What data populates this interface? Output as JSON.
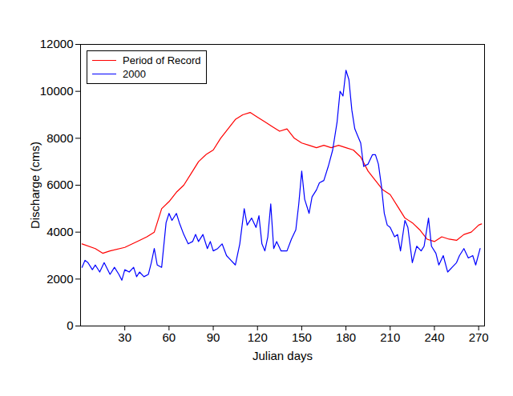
{
  "chart_data": {
    "type": "line",
    "xlabel": "Julian days",
    "ylabel": "Discharge (cms)",
    "xlim": [
      0,
      274
    ],
    "xticks": [
      30,
      60,
      90,
      120,
      150,
      180,
      210,
      240,
      270
    ],
    "ylim": [
      0,
      12000
    ],
    "yticks": [
      0,
      2000,
      4000,
      6000,
      8000,
      10000,
      12000
    ],
    "grid": false,
    "legend": "top-left",
    "series": [
      {
        "name": "Period of Record",
        "color": "#ff0000",
        "x": [
          1,
          10,
          15,
          20,
          30,
          40,
          45,
          50,
          55,
          60,
          65,
          70,
          75,
          80,
          85,
          90,
          95,
          100,
          105,
          110,
          115,
          120,
          125,
          130,
          135,
          140,
          145,
          150,
          155,
          160,
          165,
          170,
          175,
          180,
          185,
          190,
          195,
          200,
          205,
          210,
          215,
          220,
          225,
          230,
          235,
          240,
          245,
          250,
          255,
          260,
          265,
          270,
          272
        ],
        "values": [
          3500,
          3300,
          3100,
          3200,
          3350,
          3650,
          3800,
          4000,
          5000,
          5300,
          5700,
          6000,
          6500,
          7000,
          7300,
          7500,
          8000,
          8400,
          8800,
          9000,
          9100,
          8900,
          8700,
          8500,
          8300,
          8400,
          8000,
          7800,
          7700,
          7600,
          7700,
          7600,
          7700,
          7600,
          7500,
          7200,
          6600,
          6200,
          5800,
          5600,
          5100,
          4600,
          4400,
          4100,
          3700,
          3600,
          3800,
          3700,
          3650,
          3900,
          4000,
          4300,
          4350
        ]
      },
      {
        "name": "2000",
        "color": "#0000ff",
        "x": [
          1,
          3,
          5,
          8,
          10,
          13,
          16,
          20,
          23,
          26,
          28,
          30,
          33,
          36,
          38,
          40,
          43,
          46,
          48,
          50,
          52,
          55,
          58,
          60,
          62,
          65,
          67,
          70,
          73,
          76,
          78,
          80,
          83,
          86,
          88,
          90,
          93,
          96,
          99,
          102,
          105,
          108,
          111,
          113,
          116,
          119,
          121,
          123,
          125,
          127,
          129,
          131,
          133,
          136,
          140,
          143,
          146,
          148,
          150,
          152,
          155,
          157,
          160,
          162,
          165,
          168,
          171,
          174,
          176,
          178,
          180,
          182,
          184,
          186,
          188,
          190,
          192,
          195,
          198,
          200,
          202,
          204,
          206,
          208,
          210,
          213,
          215,
          217,
          220,
          222,
          225,
          228,
          231,
          233,
          236,
          238,
          241,
          243,
          246,
          249,
          252,
          255,
          257,
          260,
          263,
          266,
          268,
          271
        ],
        "values": [
          2500,
          2800,
          2700,
          2400,
          2600,
          2300,
          2700,
          2200,
          2500,
          2200,
          1950,
          2400,
          2300,
          2500,
          2100,
          2300,
          2100,
          2200,
          2700,
          3300,
          2600,
          2500,
          4400,
          4800,
          4500,
          4800,
          4400,
          3900,
          3500,
          3600,
          3900,
          3600,
          3900,
          3300,
          3600,
          3200,
          3300,
          3500,
          3000,
          2800,
          2600,
          3500,
          5000,
          4300,
          4600,
          4200,
          4700,
          3500,
          3200,
          3800,
          5200,
          3300,
          3600,
          3200,
          3200,
          3700,
          4100,
          5200,
          6600,
          5400,
          4800,
          5500,
          5800,
          6100,
          6200,
          6800,
          7500,
          8700,
          10000,
          9800,
          10900,
          10500,
          9200,
          8400,
          8100,
          7800,
          6800,
          6900,
          7300,
          7300,
          6900,
          6000,
          4800,
          4300,
          4200,
          3800,
          3900,
          3200,
          4500,
          4200,
          2700,
          3400,
          3200,
          3400,
          4600,
          3400,
          3100,
          2600,
          3000,
          2300,
          2500,
          2700,
          3000,
          3300,
          2900,
          3000,
          2600,
          3300
        ]
      }
    ]
  }
}
